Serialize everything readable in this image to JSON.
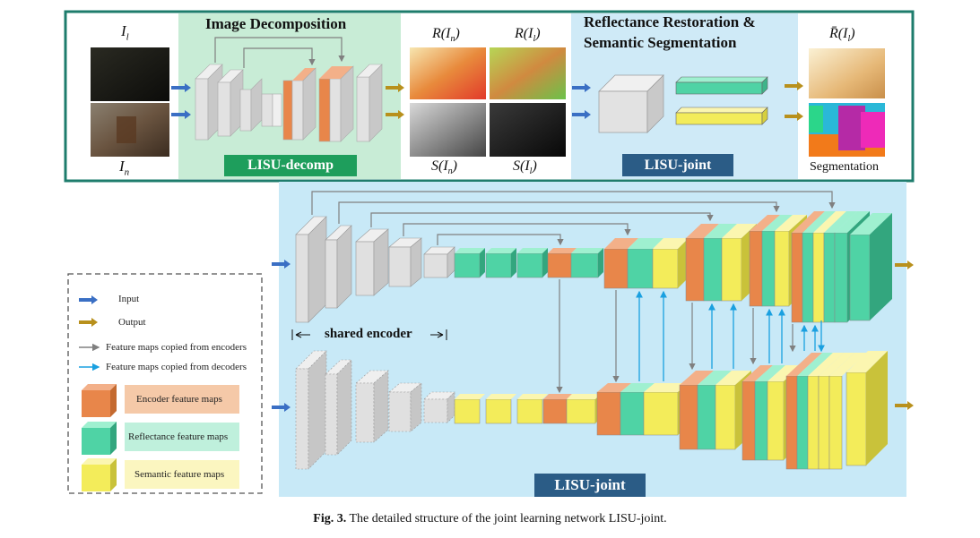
{
  "top_panel": {
    "label_il": "I",
    "label_il_sub": "l",
    "label_in": "I",
    "label_in_sub": "n",
    "stage1_title": "Image Decomposition",
    "stage1_tag": "LISU-decomp",
    "r_in": "R(I",
    "r_in_sub": "n",
    "r_il": "R(I",
    "r_il_sub": "l",
    "s_in": "S(I",
    "s_in_sub": "n",
    "s_il": "S(I",
    "s_il_sub": "l",
    "close_paren": ")",
    "stage2_title_line1": "Reflectance Restoration &",
    "stage2_title_line2": "Semantic Segmentation",
    "stage2_tag": "LISU-joint",
    "rbar_il": "R̄(I",
    "rbar_il_sub": "l",
    "seg_label": "Segmentation"
  },
  "bottom_panel": {
    "shared_encoder": "shared encoder",
    "tag": "LISU-joint"
  },
  "legend": {
    "input": "Input",
    "output": "Output",
    "enc_copy": "Feature maps copied from encoders",
    "dec_copy": "Feature maps copied from decoders",
    "encoder": "Encoder feature maps",
    "reflectance": "Reflectance feature maps",
    "semantic": "Semantic feature maps"
  },
  "caption": {
    "prefix": "Fig. 3.",
    "text": "The detailed structure of the joint learning network LISU-joint."
  },
  "colors": {
    "frame": "#1e7c6c",
    "decomp_bg": "#c8ecd6",
    "joint_bg": "#cfeaf7",
    "bottom_bg": "#c8e9f7",
    "tag_green": "#1e9e5c",
    "tag_blue": "#2b5c86",
    "input_arrow": "#3a6fc4",
    "output_arrow": "#b8901c",
    "gray_arrow": "#808080",
    "blue_arrow": "#1aa0e0",
    "encoder": "#e8864a",
    "reflectance": "#4fd3a5",
    "semantic": "#f3ec5a",
    "gray_block": "#d9d9d9"
  }
}
